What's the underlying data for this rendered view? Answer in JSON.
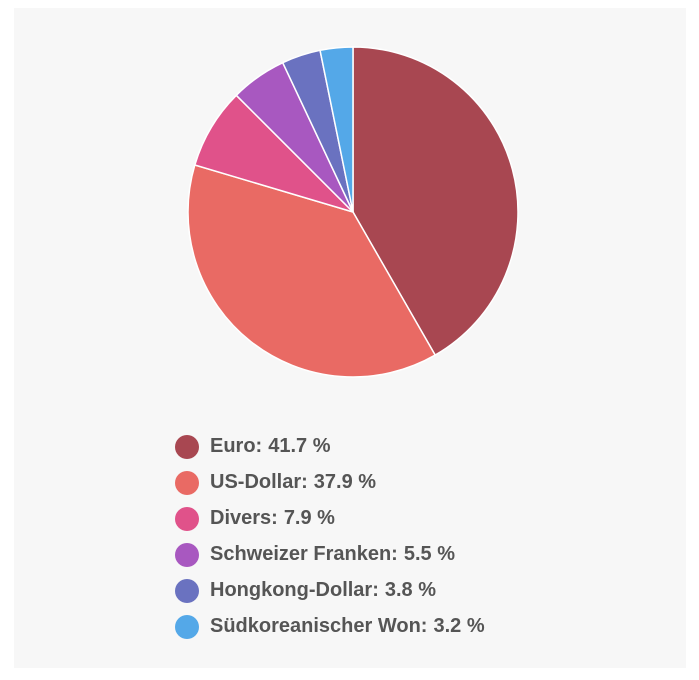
{
  "chart_data": {
    "type": "pie",
    "categories": [
      "Euro:",
      "US-Dollar:",
      "Divers:",
      "Schweizer Franken:",
      "Hongkong-Dollar:",
      "Südkoreanischer Won:"
    ],
    "values": [
      41.7,
      37.9,
      7.9,
      5.5,
      3.8,
      3.2
    ],
    "value_labels": [
      "41.7 %",
      "37.9 %",
      "7.9 %",
      "5.5 %",
      "3.8 %",
      "3.2 %"
    ],
    "colors": [
      "#a84751",
      "#e96a64",
      "#e0528a",
      "#a858c0",
      "#6a72c0",
      "#54a8e8"
    ],
    "legend": "bottom"
  }
}
